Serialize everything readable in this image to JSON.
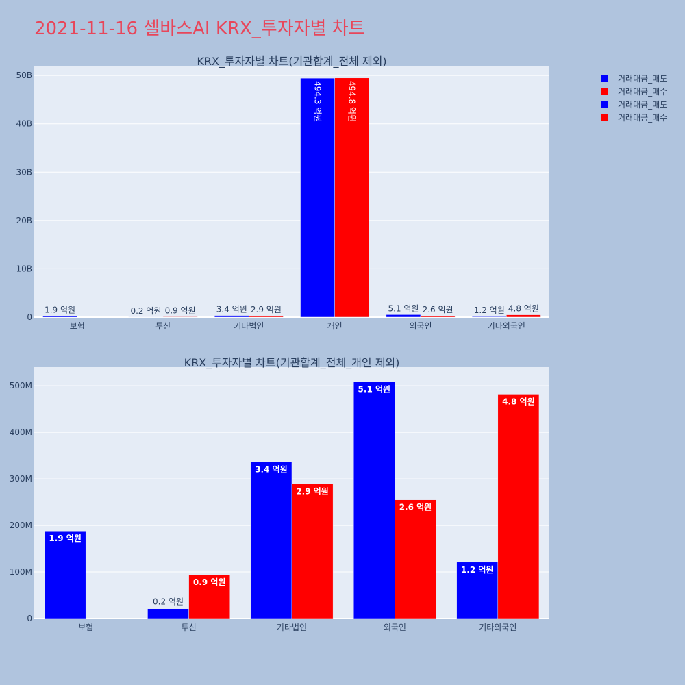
{
  "title": "2021-11-16 셀바스AI KRX_투자자별 차트",
  "legend": [
    {
      "name": "거래대금_매도",
      "color": "#0000ff"
    },
    {
      "name": "거래대금_매수",
      "color": "#ff0000"
    },
    {
      "name": "거래대금_매도",
      "color": "#0000ff"
    },
    {
      "name": "거래대금_매수",
      "color": "#ff0000"
    }
  ],
  "chart_data": [
    {
      "type": "bar",
      "title": "KRX_투자자별 차트(기관합계_전체 제외)",
      "categories": [
        "보험",
        "투신",
        "기타법인",
        "개인",
        "외국인",
        "기타외국인"
      ],
      "ylim": [
        0,
        52000000000
      ],
      "yticks": [
        0,
        10000000000,
        20000000000,
        30000000000,
        40000000000,
        50000000000
      ],
      "ytick_labels": [
        "0",
        "10B",
        "20B",
        "30B",
        "40B",
        "50B"
      ],
      "label_position": "outside",
      "series": [
        {
          "name": "거래대금_매도",
          "color": "#0000ff",
          "values": [
            190000000,
            20000000,
            340000000,
            49430000000,
            510000000,
            120000000
          ],
          "labels": [
            "1.9 억원",
            "0.2 억원",
            "3.4 억원",
            "494.3 억원",
            "5.1 억원",
            "1.2 억원"
          ]
        },
        {
          "name": "거래대금_매수",
          "color": "#ff0000",
          "values": [
            0,
            90000000,
            290000000,
            49480000000,
            260000000,
            480000000
          ],
          "labels": [
            "",
            "0.9 억원",
            "2.9 억원",
            "494.8 억원",
            "2.6 억원",
            "4.8 억원"
          ]
        }
      ]
    },
    {
      "type": "bar",
      "title": "KRX_투자자별 차트(기관합계_전체_개인 제외)",
      "categories": [
        "보험",
        "투신",
        "기타법인",
        "외국인",
        "기타외국인"
      ],
      "ylim": [
        0,
        540000000
      ],
      "yticks": [
        0,
        100000000,
        200000000,
        300000000,
        400000000,
        500000000
      ],
      "ytick_labels": [
        "0",
        "100M",
        "200M",
        "300M",
        "400M",
        "500M"
      ],
      "label_position": "inside",
      "series": [
        {
          "name": "거래대금_매도",
          "color": "#0000ff",
          "values": [
            188000000,
            21000000,
            336000000,
            508000000,
            121000000
          ],
          "labels": [
            "1.9 억원",
            "0.2 억원",
            "3.4 억원",
            "5.1 억원",
            "1.2 억원"
          ]
        },
        {
          "name": "거래대금_매수",
          "color": "#ff0000",
          "values": [
            0,
            94000000,
            289000000,
            255000000,
            482000000
          ],
          "labels": [
            "",
            "0.9 억원",
            "2.9 억원",
            "2.6 억원",
            "4.8 억원"
          ]
        }
      ]
    }
  ]
}
